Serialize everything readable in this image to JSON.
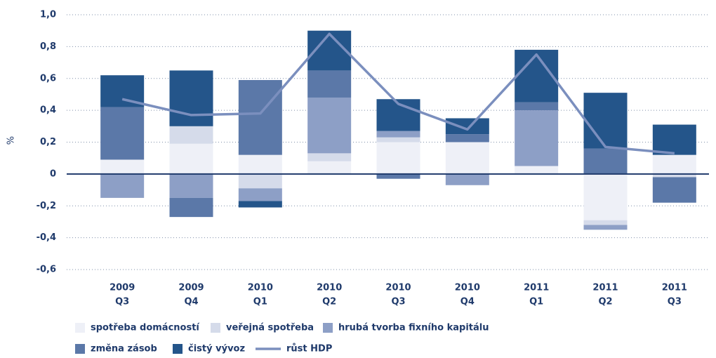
{
  "chart_data": {
    "type": "bar",
    "stacked": true,
    "ylabel": "%",
    "categories": [
      [
        "2009",
        "Q3"
      ],
      [
        "2009",
        "Q4"
      ],
      [
        "2010",
        "Q1"
      ],
      [
        "2010",
        "Q2"
      ],
      [
        "2010",
        "Q3"
      ],
      [
        "2010",
        "Q4"
      ],
      [
        "2011",
        "Q1"
      ],
      [
        "2011",
        "Q2"
      ],
      [
        "2011",
        "Q3"
      ]
    ],
    "series": [
      {
        "name": "spotřeba domácností",
        "color": "#eef0f7",
        "values": [
          0.09,
          0.19,
          0.12,
          0.08,
          0.2,
          0.2,
          0.05,
          -0.29,
          0.12
        ]
      },
      {
        "name": "veřejná spotřeba",
        "color": "#d5dbea",
        "values": [
          null,
          0.11,
          -0.09,
          0.05,
          0.03,
          null,
          null,
          -0.03,
          -0.02
        ]
      },
      {
        "name": "hrubá tvorba fixního kapitálu",
        "color": "#8d9fc6",
        "values": [
          -0.15,
          -0.15,
          -0.08,
          0.35,
          0.04,
          -0.07,
          0.35,
          -0.03,
          null
        ]
      },
      {
        "name": "změna zásob",
        "color": "#5b78a8",
        "values": [
          0.33,
          -0.12,
          0.47,
          0.17,
          -0.03,
          0.05,
          0.05,
          0.16,
          -0.16
        ]
      },
      {
        "name": "čistý vývoz",
        "color": "#24558a",
        "values": [
          0.2,
          0.35,
          -0.04,
          0.25,
          0.2,
          0.1,
          0.33,
          0.35,
          0.19
        ]
      },
      {
        "name": "růst HDP",
        "color": "#7b8fbe",
        "type": "line",
        "values": [
          0.47,
          0.37,
          0.38,
          0.88,
          0.44,
          0.28,
          0.75,
          0.17,
          0.13
        ]
      }
    ],
    "ylim": [
      -0.6,
      1.0
    ],
    "yticks": [
      {
        "value": 1.0,
        "label": "1,0"
      },
      {
        "value": 0.8,
        "label": "0,8"
      },
      {
        "value": 0.6,
        "label": "0,6"
      },
      {
        "value": 0.4,
        "label": "0,4"
      },
      {
        "value": 0.2,
        "label": "0,2"
      },
      0,
      {
        "value": -0.2,
        "label": "-0,2"
      },
      {
        "value": -0.4,
        "label": "-0,4"
      },
      {
        "value": -0.6,
        "label": "-0,6"
      }
    ],
    "grid": true
  }
}
